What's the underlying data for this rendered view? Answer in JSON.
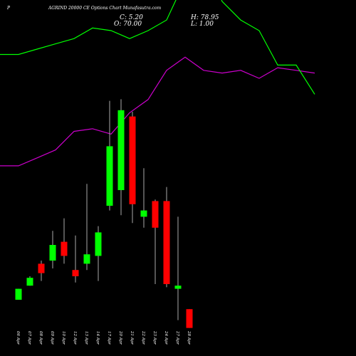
{
  "header": {
    "left_mark": "P",
    "title": "AGRIND 20000  CE Options  Chart Munafasutra.com"
  },
  "ohlc": {
    "close_label": "C:",
    "close": "5.20",
    "high_label": "H:",
    "high": "78.95",
    "open_label": "O:",
    "open": "70.00",
    "low_label": "L:",
    "low": "1.00"
  },
  "colors": {
    "background": "#000000",
    "up": "#00ff00",
    "down": "#ff0000",
    "ma_short": "#00ff00",
    "ma_long": "#cc00cc",
    "wick": "#aaaaaa"
  },
  "chart_data": {
    "type": "candlestick",
    "categories": [
      "06 Apr",
      "07 Apr",
      "08 Apr",
      "09 Apr",
      "10 Apr",
      "12 Apr",
      "13 Apr",
      "14 Apr",
      "17 Apr",
      "20 Apr",
      "21 Apr",
      "22 Apr",
      "23 Apr",
      "24 Apr",
      "27 Apr",
      "28 Apr"
    ],
    "candles": [
      {
        "open": 5.0,
        "close": 12.0,
        "high": 12.0,
        "low": 5.0
      },
      {
        "open": 14.0,
        "close": 19.0,
        "high": 20.0,
        "low": 14.0
      },
      {
        "open": 28.0,
        "close": 22.0,
        "high": 30.0,
        "low": 17.0
      },
      {
        "open": 30.0,
        "close": 40.0,
        "high": 49.0,
        "low": 25.0
      },
      {
        "open": 42.0,
        "close": 33.0,
        "high": 57.0,
        "low": 28.0
      },
      {
        "open": 24.0,
        "close": 20.0,
        "high": 46.0,
        "low": 16.0
      },
      {
        "open": 28.0,
        "close": 34.0,
        "high": 79.0,
        "low": 24.0
      },
      {
        "open": 33.0,
        "close": 48.0,
        "high": 52.0,
        "low": 17.0
      },
      {
        "open": 65.0,
        "close": 103.0,
        "high": 132.0,
        "low": 62.0
      },
      {
        "open": 75.0,
        "close": 126.0,
        "high": 133.0,
        "low": 59.0
      },
      {
        "open": 122.0,
        "close": 66.0,
        "high": 125.0,
        "low": 54.0
      },
      {
        "open": 58.0,
        "close": 62.0,
        "high": 89.0,
        "low": 51.0
      },
      {
        "open": 68.0,
        "close": 51.0,
        "high": 69.0,
        "low": 15.0
      },
      {
        "open": 68.0,
        "close": 15.0,
        "high": 77.0,
        "low": 13.0
      },
      {
        "open": 12.0,
        "close": 14.0,
        "high": 58.0,
        "low": -8.0
      },
      {
        "open": -1.0,
        "close": -13.0,
        "high": -1.0,
        "low": -13.0
      }
    ],
    "ma_short": [
      30.0,
      30.0,
      31.0,
      32.0,
      33.0,
      35.0,
      34.5,
      33.0,
      34.5,
      36.5,
      44.0,
      49.0,
      40.0,
      36.5,
      34.5,
      28.0,
      28.0,
      22.5
    ],
    "ma_long": [
      9.0,
      9.0,
      10.5,
      12.0,
      15.5,
      16.0,
      15.0,
      19.0,
      21.5,
      27.0,
      29.5,
      27.0,
      26.5,
      27.0,
      25.5,
      27.5,
      27.0,
      26.5
    ],
    "ma_x": [
      0,
      1,
      2,
      3,
      4,
      5,
      6,
      7,
      8,
      9,
      10,
      11,
      12,
      13,
      14,
      15,
      16,
      17
    ],
    "legend": "none",
    "grid": false
  }
}
